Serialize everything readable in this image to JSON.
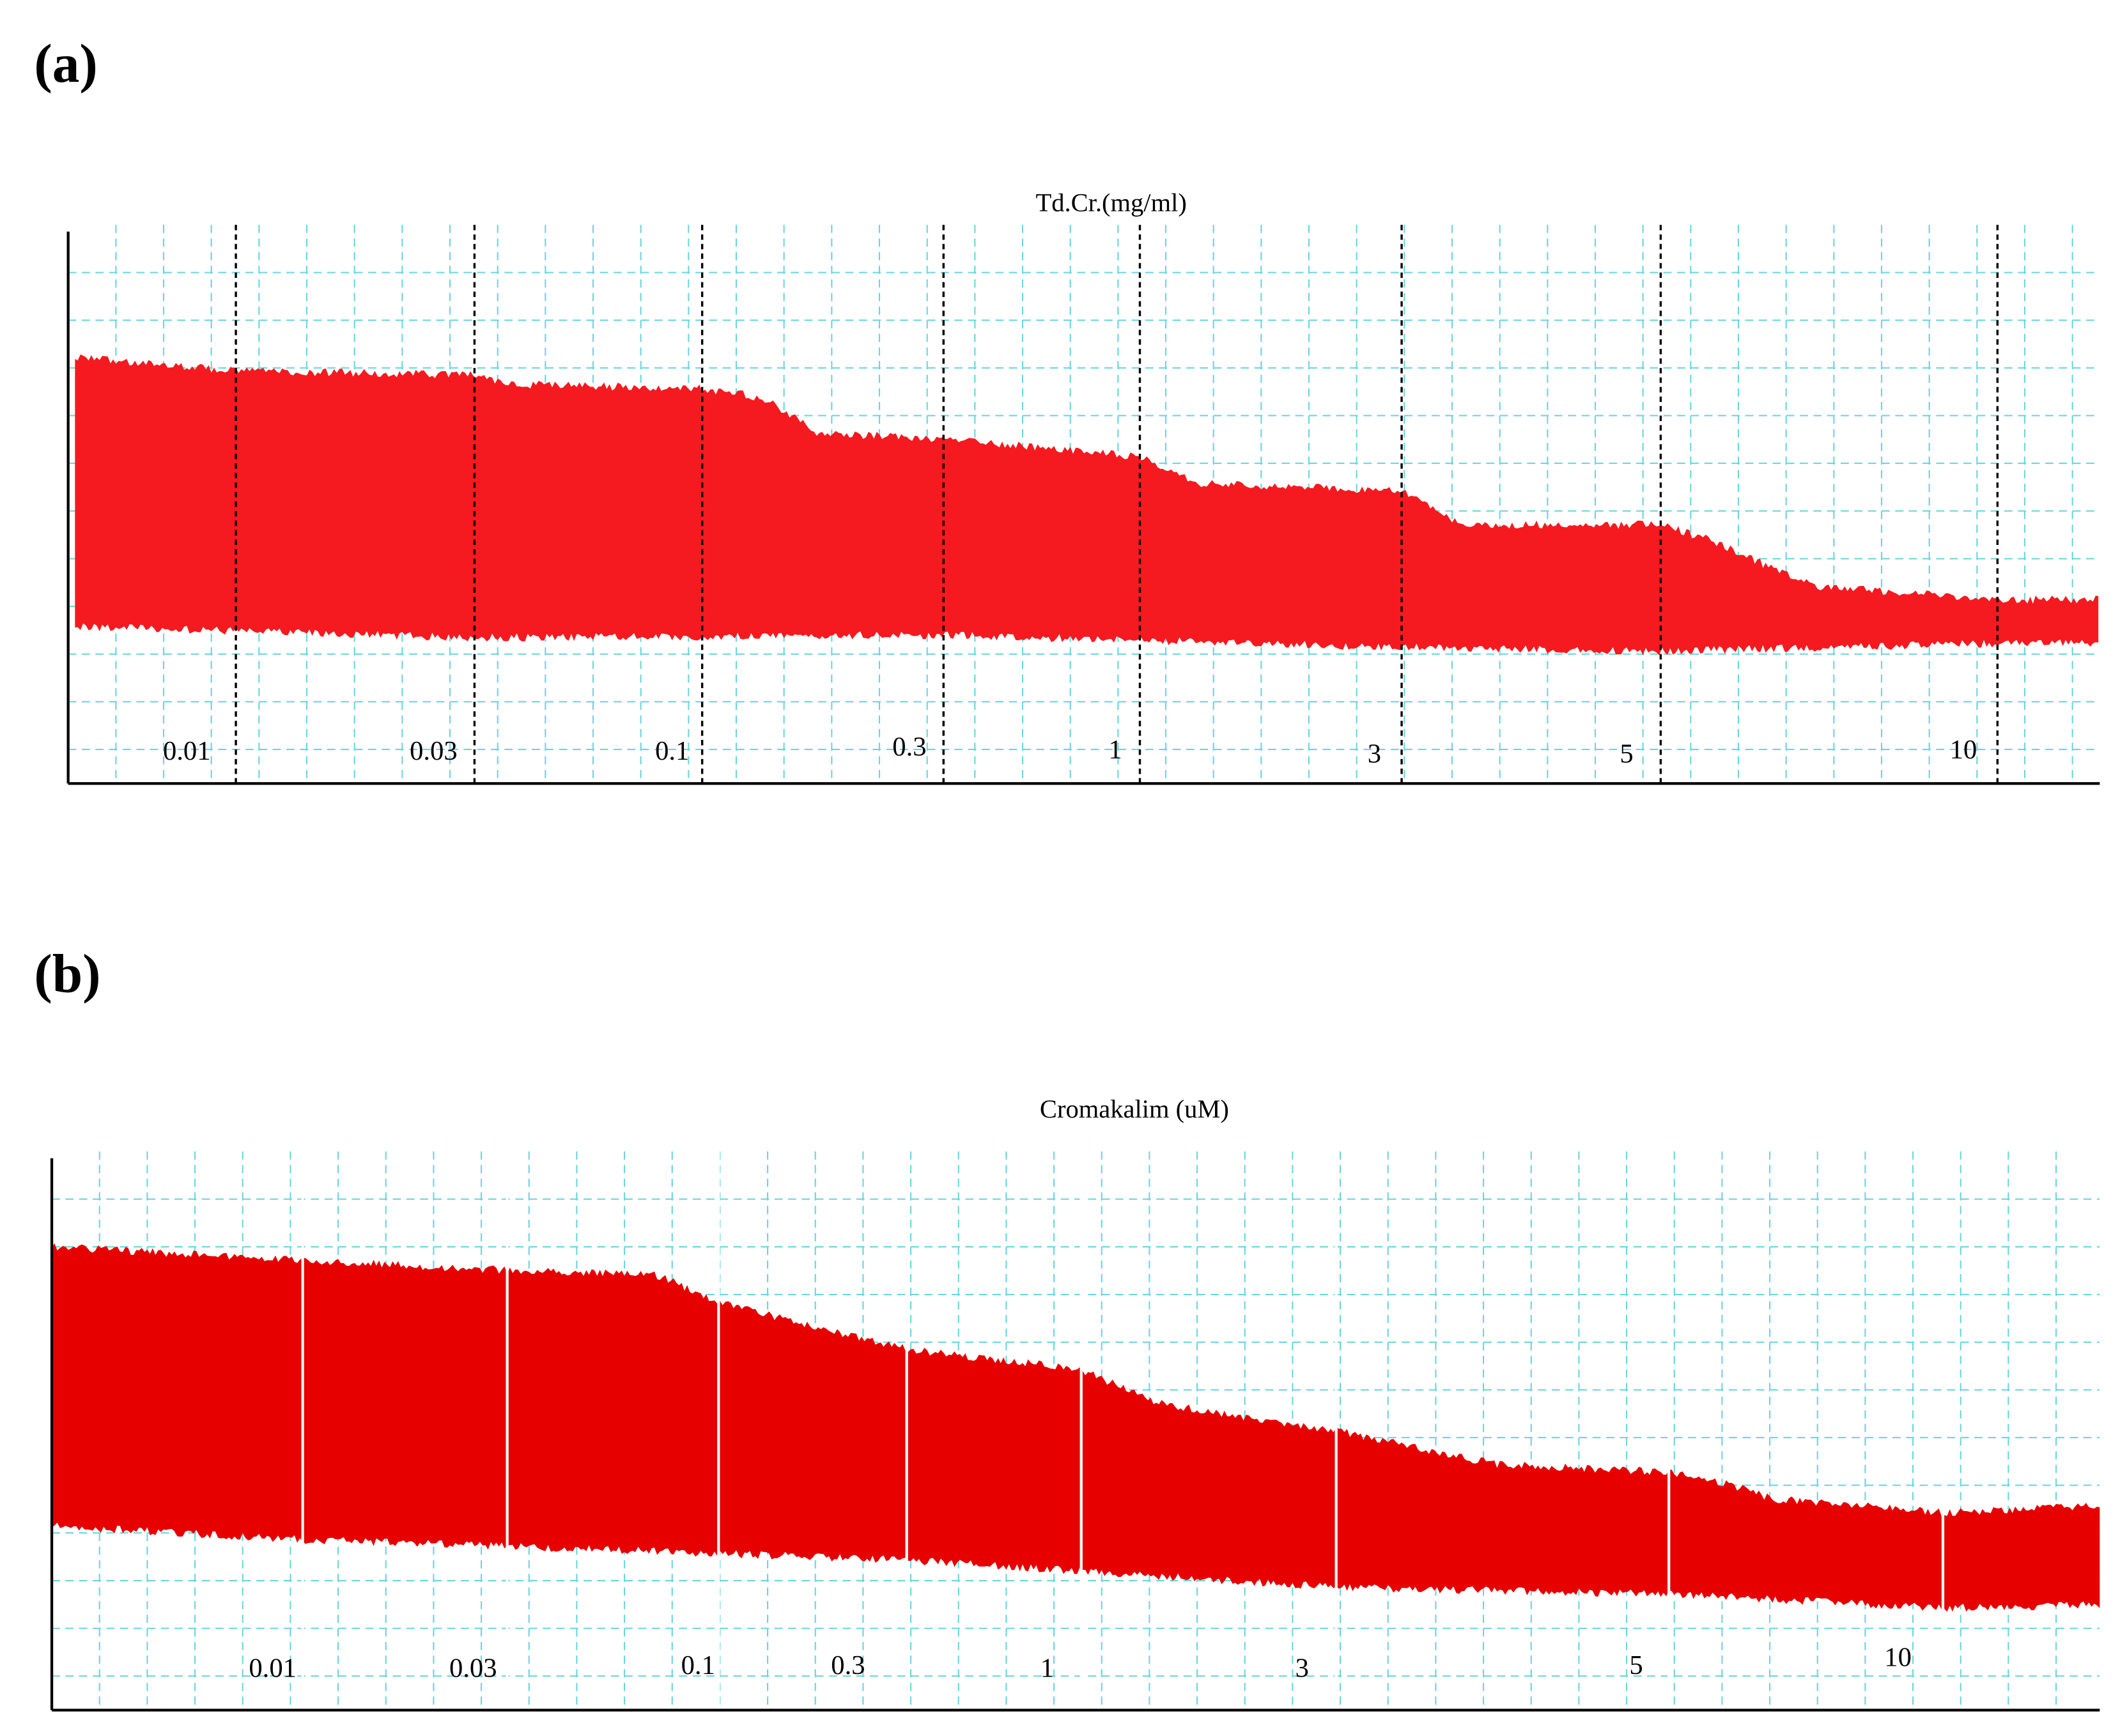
{
  "panels": [
    {
      "label": "(a)",
      "title": "Td.Cr.(mg/ml)",
      "doses": [
        "0.01",
        "0.03",
        "0.1",
        "0.3",
        "1",
        "3",
        "5",
        "10"
      ]
    },
    {
      "label": "(b)",
      "title": "Cromakalim (uM)",
      "doses": [
        "0.01",
        "0.03",
        "0.1",
        "0.3",
        "1",
        "3",
        "5",
        "10"
      ]
    }
  ]
}
